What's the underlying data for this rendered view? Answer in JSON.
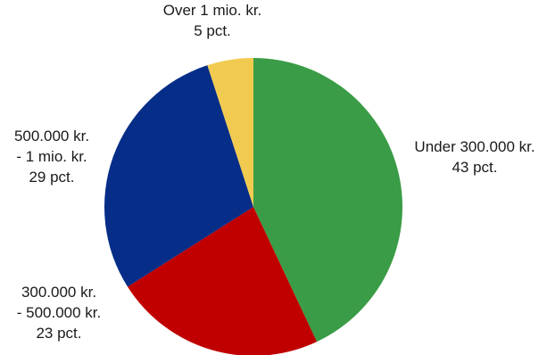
{
  "chart_data": {
    "type": "pie",
    "title": "",
    "start_angle_deg": 0,
    "direction": "clockwise",
    "slices": [
      {
        "name": "Under 300.000 kr.",
        "value": 43,
        "value_label": "43 pct.",
        "label_lines": [
          "Under 300.000 kr.",
          "43 pct."
        ],
        "color": "#3a9c46"
      },
      {
        "name": "300.000 kr. - 500.000 kr.",
        "value": 23,
        "value_label": "23 pct.",
        "label_lines": [
          "300.000 kr.",
          "- 500.000 kr.",
          "23 pct."
        ],
        "color": "#c00000"
      },
      {
        "name": "500.000 kr. - 1 mio. kr.",
        "value": 29,
        "value_label": "29 pct.",
        "label_lines": [
          "500.000 kr.",
          "- 1 mio. kr.",
          "29 pct."
        ],
        "color": "#062d87"
      },
      {
        "name": "Over 1 mio. kr.",
        "value": 5,
        "value_label": "5 pct.",
        "label_lines": [
          "Over 1 mio. kr.",
          "5 pct."
        ],
        "color": "#f1cb50"
      }
    ]
  }
}
